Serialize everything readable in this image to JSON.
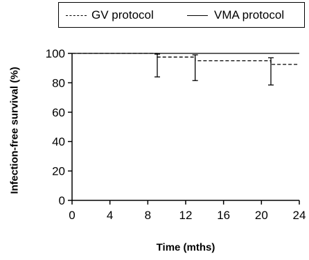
{
  "chart_data": {
    "type": "line",
    "xlabel": "Time (mths)",
    "ylabel": "Infection-free survival (%)",
    "xlim": [
      0,
      24
    ],
    "ylim": [
      0,
      100
    ],
    "xticks": [
      0,
      4,
      8,
      12,
      16,
      20,
      24
    ],
    "yticks": [
      0,
      20,
      40,
      60,
      80,
      100
    ],
    "grid": false,
    "legend_position": "top",
    "series": [
      {
        "name": "GV protocol",
        "line_style": "dashed",
        "step": true,
        "x": [
          0,
          9,
          13,
          21,
          24
        ],
        "y": [
          100,
          97.5,
          95,
          92.5,
          92.5
        ],
        "error_bars": [
          {
            "x": 9,
            "y": 97.5,
            "lower": 84,
            "upper": 99.5
          },
          {
            "x": 13,
            "y": 95,
            "lower": 81.5,
            "upper": 99
          },
          {
            "x": 21,
            "y": 92.5,
            "lower": 78.5,
            "upper": 97
          }
        ]
      },
      {
        "name": "VMA protocol",
        "line_style": "solid",
        "step": true,
        "x": [
          0,
          24
        ],
        "y": [
          100,
          100
        ]
      }
    ]
  }
}
